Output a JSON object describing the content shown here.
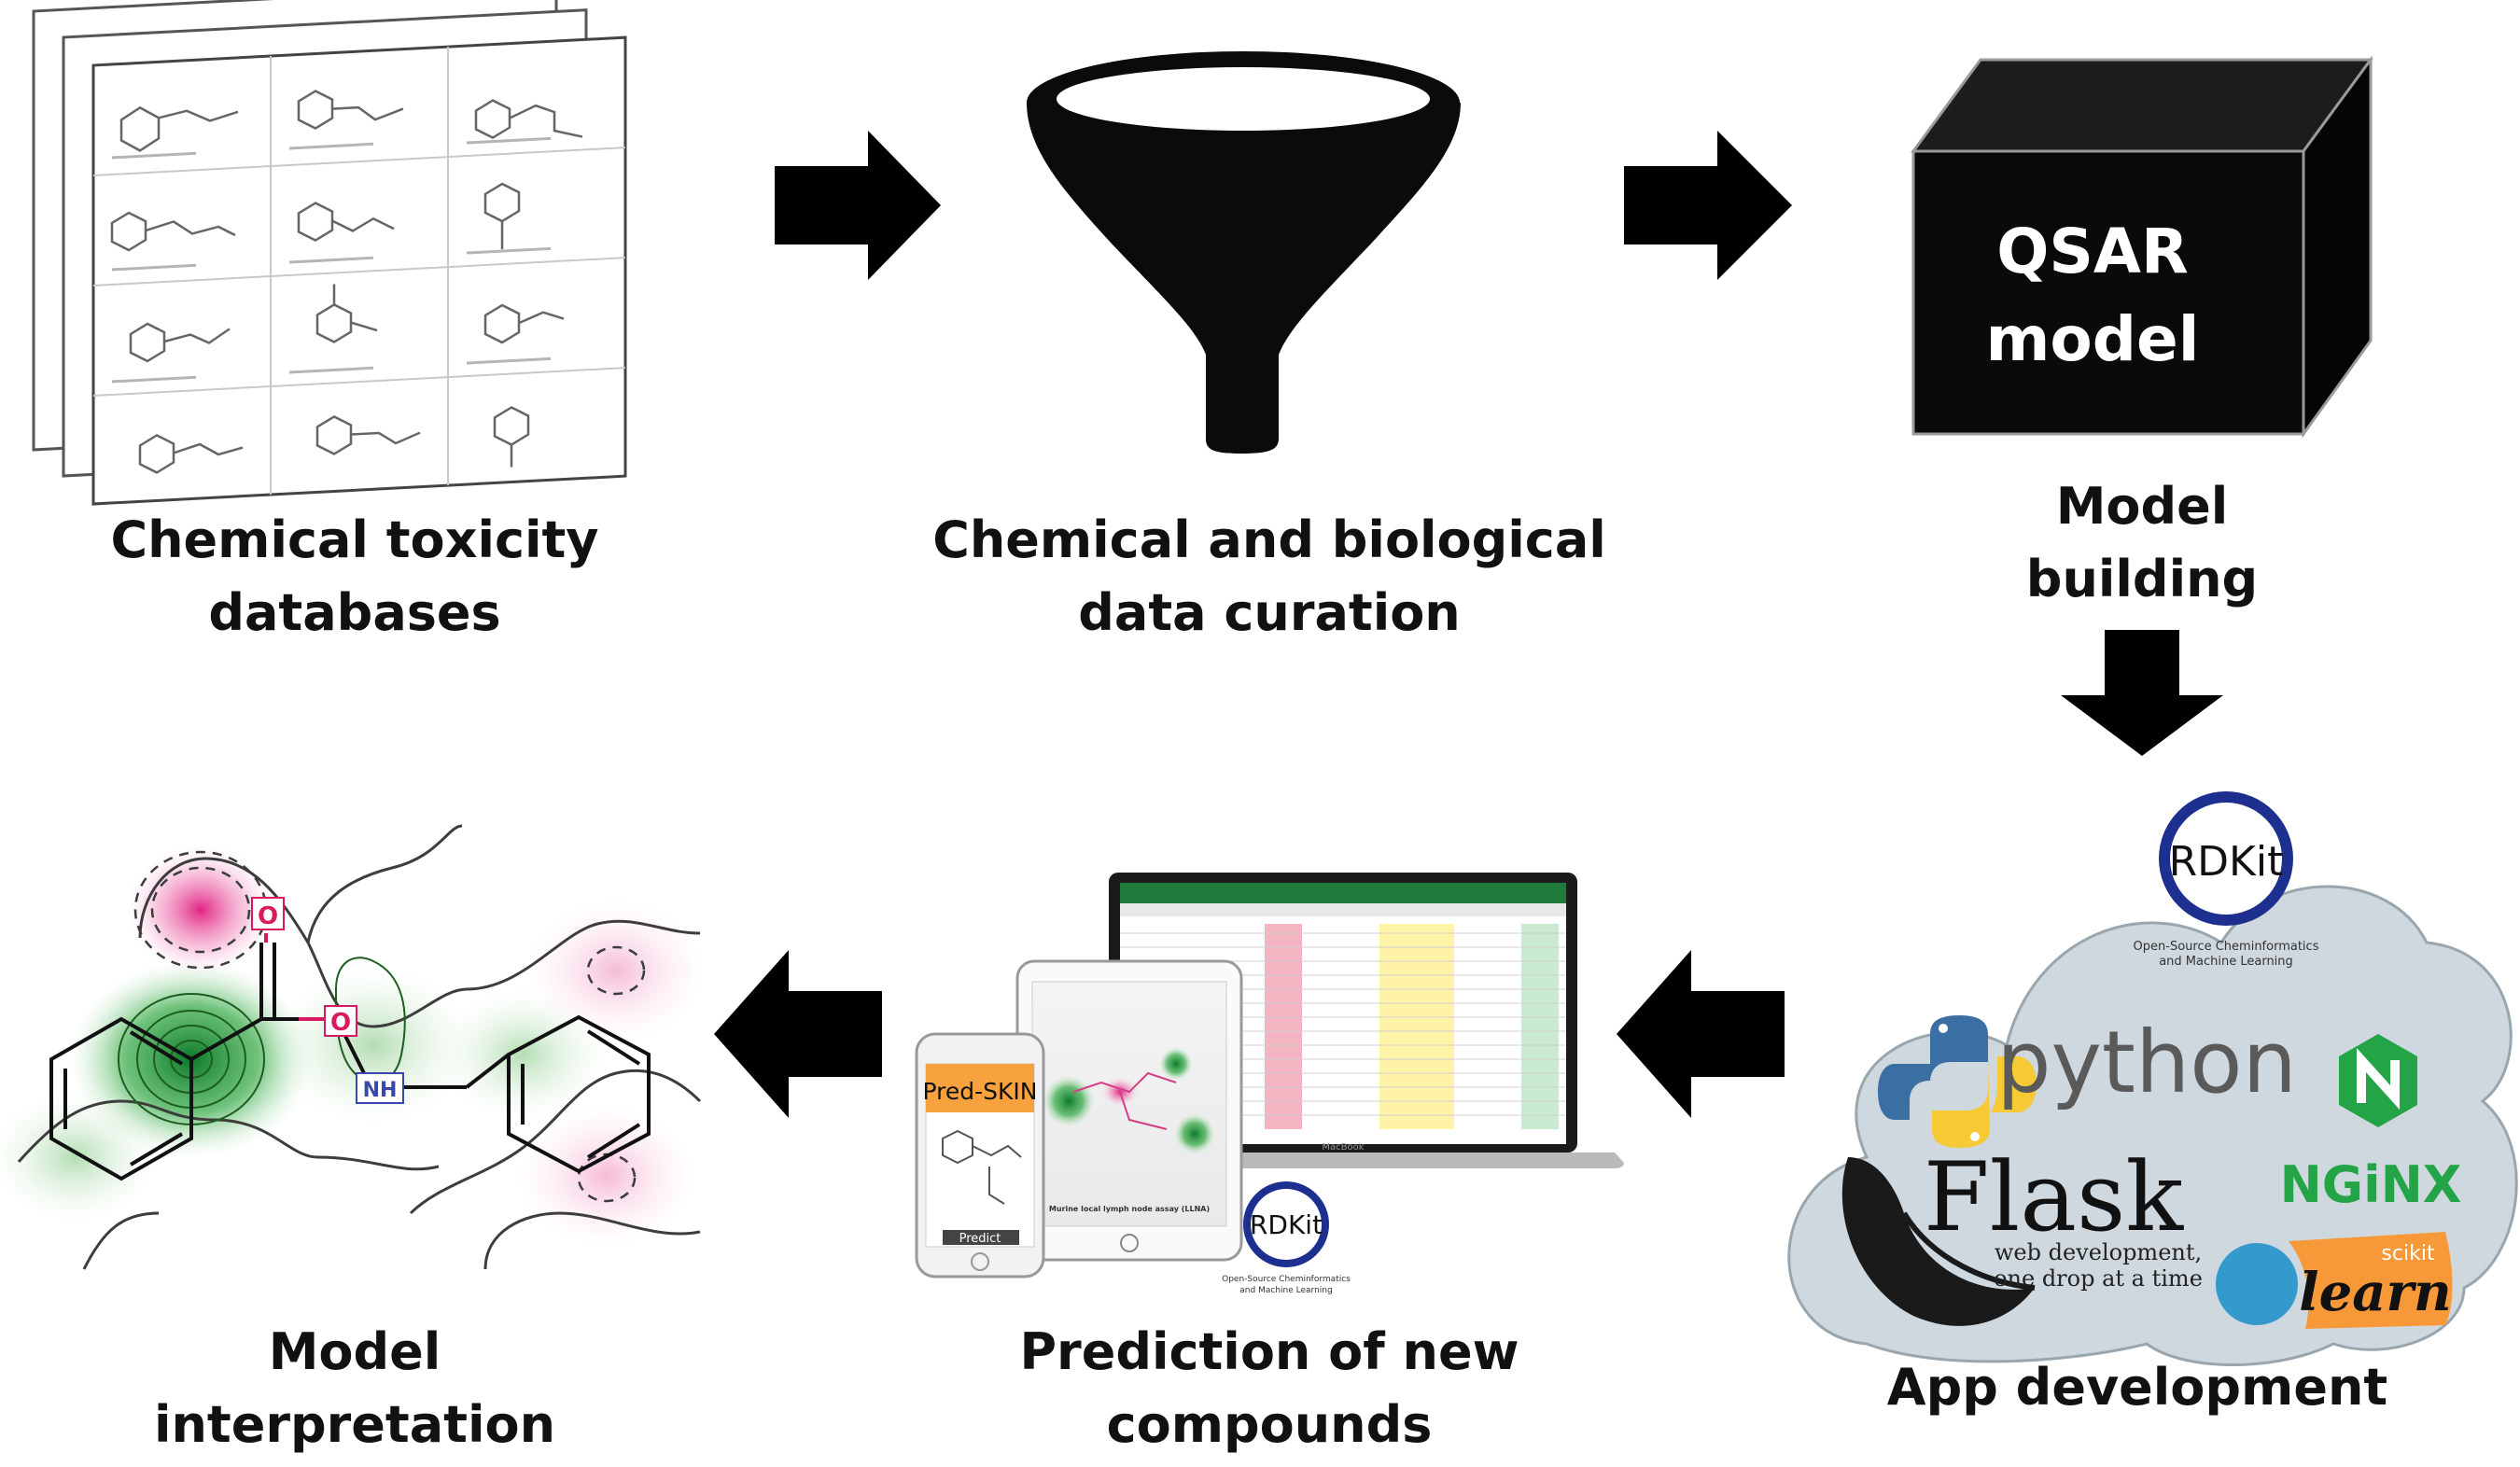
{
  "steps": {
    "databases": {
      "line1": "Chemical toxicity",
      "line2": "databases"
    },
    "curation": {
      "line1": "Chemical and biological",
      "line2": "data curation"
    },
    "building": {
      "line1": "Model",
      "line2": "building"
    },
    "app": {
      "line1": "App development"
    },
    "prediction": {
      "line1": "Prediction of new",
      "line2": "compounds"
    },
    "interpretation": {
      "line1": "Model",
      "line2": "interpretation"
    }
  },
  "cube": {
    "line1": "QSAR",
    "line2": "model"
  },
  "cloud": {
    "rdkit": "RDKit",
    "rdkit_tagline1": "Open-Source Cheminformatics",
    "rdkit_tagline2": "and Machine Learning",
    "python": "python",
    "flask": "Flask",
    "flask_tagline1": "web development,",
    "flask_tagline2": "one drop at a time",
    "nginx": "NGiNX",
    "scikit": "scikit",
    "learn": "learn"
  },
  "devices": {
    "phone_app": "Pred-SKIN",
    "phone_button": "Predict",
    "tablet_caption": "Murine local lymph node assay (LLNA)",
    "laptop_brand": "MacBook",
    "rdkit": "RDKit",
    "rdkit_tagline1": "Open-Source Cheminformatics",
    "rdkit_tagline2": "and Machine Learning"
  },
  "molecule": {
    "atom_o1": "O",
    "atom_o2": "O",
    "atom_nh": "NH"
  },
  "colors": {
    "ink": "#000000",
    "cloud": "#cfd8de",
    "python_blue": "#3b6fa4",
    "python_yellow": "#f6c935",
    "nginx_green": "#22a447",
    "sklearn_orange": "#f89939",
    "sklearn_blue": "#3499cd",
    "rdkit_navy": "#1d2f8f"
  }
}
